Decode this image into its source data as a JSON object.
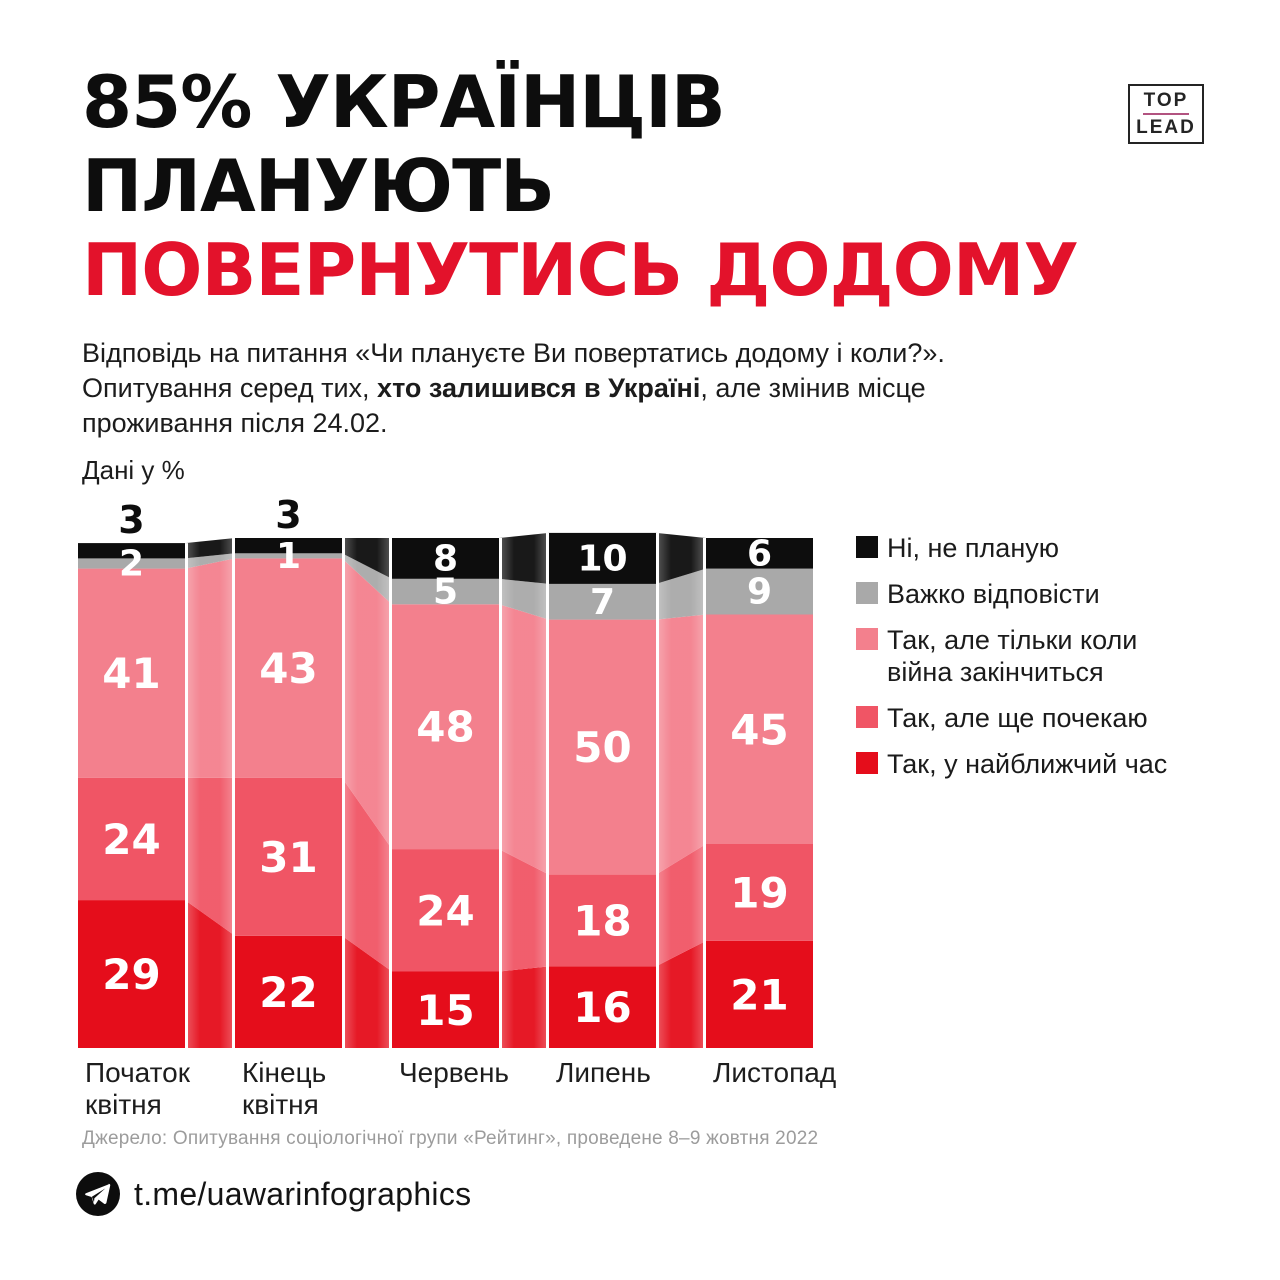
{
  "logo": {
    "line1": "TOP",
    "line2": "LEAD"
  },
  "title": {
    "black_line1": "85% УКРАЇНЦІВ",
    "black_line2": "ПЛАНУЮТЬ",
    "red_line": "ПОВЕРНУТИСЬ ДОДОМУ"
  },
  "subtitle": {
    "pre": "Відповідь на питання «Чи плануєте Ви повертатись додому і коли?». Опитування серед тих, ",
    "bold": "хто залишився в Україні",
    "post": ", але змінив місце проживання після 24.02."
  },
  "units_label": "Дані у %",
  "source": "Джерело: Опитування соціологічної групи «Рейтинг», проведене 8–9 жовтня 2022",
  "footer": {
    "handle": "t.me/uawarinfographics",
    "icon": "telegram-icon"
  },
  "colors": {
    "title_red": "#e3122b",
    "segment_black": "#0d0d0d",
    "segment_gray": "#a9a9a9",
    "segment_pink": "#f3808d",
    "segment_medium": "#f05565",
    "segment_red": "#e50d1b",
    "source_gray": "#9c9c9c",
    "logo_divider": "#b25380",
    "value_text": "#ffffff"
  },
  "chart_data": {
    "type": "bar",
    "variant": "stacked-percentage-with-flow-connectors",
    "title": "85% українців планують повернутись додому",
    "categories": [
      "Початок квітня",
      "Кінець квітня",
      "Червень",
      "Липень",
      "Листопад"
    ],
    "series": [
      {
        "name": "Ні, не планую",
        "color": "#0d0d0d",
        "values": [
          3,
          3,
          8,
          10,
          6
        ]
      },
      {
        "name": "Важко відповісти",
        "color": "#a9a9a9",
        "values": [
          2,
          1,
          5,
          7,
          9
        ]
      },
      {
        "name": "Так, але тільки коли війна закінчиться",
        "color": "#f3808d",
        "values": [
          41,
          43,
          48,
          50,
          45
        ]
      },
      {
        "name": "Так, але ще почекаю",
        "color": "#f05565",
        "values": [
          24,
          31,
          24,
          18,
          19
        ]
      },
      {
        "name": "Так, у найближчий час",
        "color": "#e50d1b",
        "values": [
          29,
          22,
          15,
          16,
          21
        ]
      }
    ],
    "value_unit": "%",
    "ylim": [
      0,
      100
    ],
    "grid": false,
    "legend_position": "right"
  }
}
